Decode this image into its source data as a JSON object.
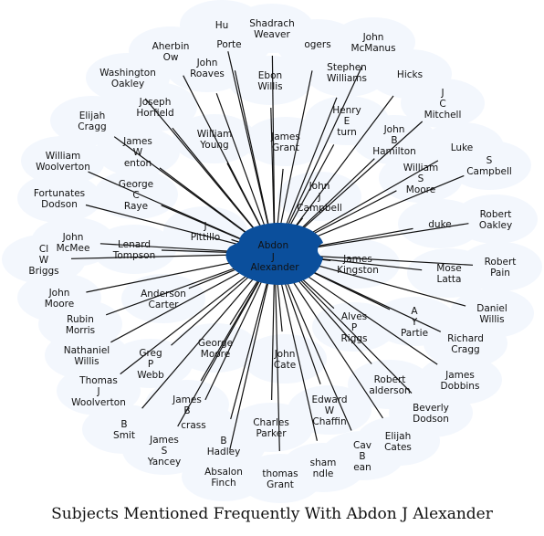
{
  "caption": "Subjects Mentioned Frequently With Abdon J Alexander",
  "center": {
    "name": "Abdon J Alexander",
    "color": "#0b4f9c"
  },
  "node_fill": "#f3f7fd",
  "nodes": [
    "Hu",
    "Shadrach Weaver",
    "John McManus",
    "Aherbin Ow",
    "Porte",
    "ogers",
    "John Roaves",
    "Ebon Willis",
    "Stephen Williams",
    "Washington Oakley",
    "Hicks",
    "Joseph Horfield",
    "J C Mitchell",
    "Elijah Cragg",
    "Henry E turn",
    "William Young",
    "James Grant",
    "John B Hamilton",
    "James W enton",
    "Luke",
    "S Campbell",
    "William Woolverton",
    "William S Moore",
    "George C Raye",
    "John J Campbell",
    "Fortunates Dodson",
    "Robert Oakley",
    "duke",
    "J Pittillo",
    "John McMee",
    "Lenard Tompson",
    "Robert Pain",
    "Cl W Briggs",
    "James Kingston",
    "Mose Latta",
    "John Moore",
    "Anderson Carter",
    "Daniel Willis",
    "A Y Partie",
    "Rubin Morris",
    "Alves P Riggs",
    "Richard Cragg",
    "George Moore",
    "Nathaniel Willis",
    "Greg P Webb",
    "John Cate",
    "Robert alderson",
    "James Dobbins",
    "Thomas J Woolverton",
    "James B",
    "Edward W Chaffin",
    "Beverly Dodson",
    "B Smit",
    "crass",
    "Charles Parker",
    "Elijah Cates",
    "James S Yancey",
    "B Hadley",
    "Cav B ean",
    "Absalon Finch",
    "thomas Grant",
    "sham ndle"
  ]
}
